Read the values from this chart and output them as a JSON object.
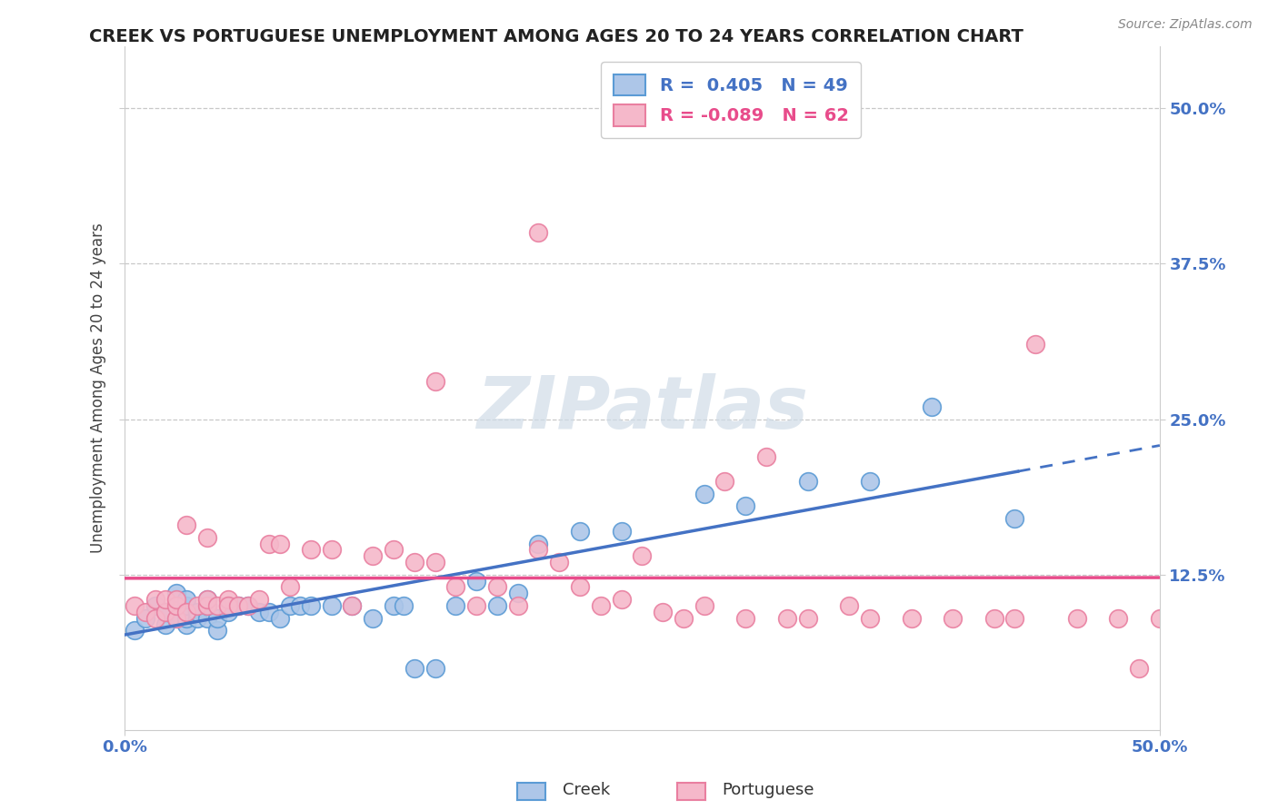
{
  "title": "CREEK VS PORTUGUESE UNEMPLOYMENT AMONG AGES 20 TO 24 YEARS CORRELATION CHART",
  "source_text": "Source: ZipAtlas.com",
  "ylabel": "Unemployment Among Ages 20 to 24 years",
  "xlim": [
    0.0,
    0.5
  ],
  "ylim": [
    0.0,
    0.55
  ],
  "xticks": [
    0.0,
    0.5
  ],
  "xtick_labels": [
    "0.0%",
    "50.0%"
  ],
  "yticks": [
    0.125,
    0.25,
    0.375,
    0.5
  ],
  "ytick_labels": [
    "12.5%",
    "25.0%",
    "37.5%",
    "50.0%"
  ],
  "creek_color": "#adc6e8",
  "creek_edge_color": "#5b9bd5",
  "portuguese_color": "#f5b8ca",
  "portuguese_edge_color": "#e97fa0",
  "creek_R": 0.405,
  "creek_N": 49,
  "portuguese_R": -0.089,
  "portuguese_N": 62,
  "creek_line_color": "#4472c4",
  "portuguese_line_color": "#e84c8b",
  "watermark": "ZIPatlas",
  "background_color": "#ffffff",
  "grid_color": "#c8c8c8",
  "title_color": "#222222",
  "axis_label_color": "#444444",
  "tick_label_color": "#4472c4",
  "creek_x": [
    0.005,
    0.01,
    0.015,
    0.02,
    0.02,
    0.025,
    0.025,
    0.025,
    0.03,
    0.03,
    0.03,
    0.03,
    0.035,
    0.035,
    0.04,
    0.04,
    0.04,
    0.045,
    0.045,
    0.05,
    0.05,
    0.055,
    0.06,
    0.065,
    0.07,
    0.075,
    0.08,
    0.085,
    0.09,
    0.1,
    0.11,
    0.12,
    0.13,
    0.135,
    0.14,
    0.15,
    0.16,
    0.17,
    0.18,
    0.19,
    0.2,
    0.22,
    0.24,
    0.28,
    0.3,
    0.33,
    0.36,
    0.39,
    0.43
  ],
  "creek_y": [
    0.08,
    0.09,
    0.1,
    0.085,
    0.095,
    0.09,
    0.1,
    0.11,
    0.085,
    0.09,
    0.1,
    0.105,
    0.09,
    0.095,
    0.09,
    0.1,
    0.105,
    0.08,
    0.09,
    0.095,
    0.1,
    0.1,
    0.1,
    0.095,
    0.095,
    0.09,
    0.1,
    0.1,
    0.1,
    0.1,
    0.1,
    0.09,
    0.1,
    0.1,
    0.05,
    0.05,
    0.1,
    0.12,
    0.1,
    0.11,
    0.15,
    0.16,
    0.16,
    0.19,
    0.18,
    0.2,
    0.2,
    0.26,
    0.17
  ],
  "portuguese_x": [
    0.005,
    0.01,
    0.015,
    0.015,
    0.02,
    0.02,
    0.025,
    0.025,
    0.025,
    0.03,
    0.03,
    0.035,
    0.04,
    0.04,
    0.04,
    0.045,
    0.05,
    0.05,
    0.055,
    0.06,
    0.065,
    0.07,
    0.075,
    0.08,
    0.09,
    0.1,
    0.11,
    0.12,
    0.13,
    0.14,
    0.15,
    0.16,
    0.17,
    0.18,
    0.19,
    0.2,
    0.21,
    0.22,
    0.23,
    0.24,
    0.25,
    0.26,
    0.27,
    0.28,
    0.29,
    0.3,
    0.31,
    0.32,
    0.33,
    0.35,
    0.36,
    0.38,
    0.4,
    0.42,
    0.43,
    0.44,
    0.46,
    0.48,
    0.49,
    0.5,
    0.15,
    0.2
  ],
  "portuguese_y": [
    0.1,
    0.095,
    0.09,
    0.105,
    0.095,
    0.105,
    0.09,
    0.1,
    0.105,
    0.095,
    0.165,
    0.1,
    0.1,
    0.105,
    0.155,
    0.1,
    0.105,
    0.1,
    0.1,
    0.1,
    0.105,
    0.15,
    0.15,
    0.115,
    0.145,
    0.145,
    0.1,
    0.14,
    0.145,
    0.135,
    0.135,
    0.115,
    0.1,
    0.115,
    0.1,
    0.145,
    0.135,
    0.115,
    0.1,
    0.105,
    0.14,
    0.095,
    0.09,
    0.1,
    0.2,
    0.09,
    0.22,
    0.09,
    0.09,
    0.1,
    0.09,
    0.09,
    0.09,
    0.09,
    0.09,
    0.31,
    0.09,
    0.09,
    0.05,
    0.09,
    0.28,
    0.4
  ]
}
